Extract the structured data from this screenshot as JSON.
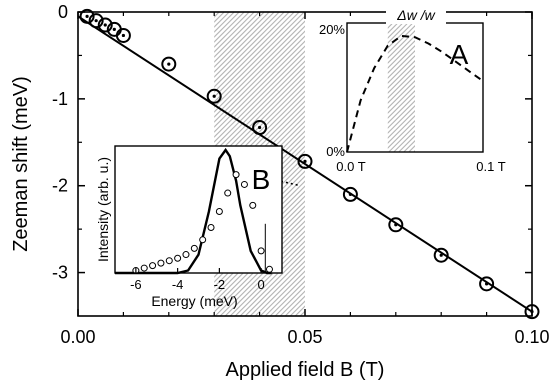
{
  "chart_data": [
    {
      "id": "main",
      "type": "scatter",
      "xlabel": "Applied field B (T)",
      "ylabel": "Zeeman shift (meV)",
      "xlim": [
        0,
        0.1
      ],
      "ylim": [
        -3.5,
        0
      ],
      "x_ticks": [
        0.0,
        0.05,
        0.1
      ],
      "x_tick_labels": [
        "0.00",
        "0.05",
        "0.10"
      ],
      "y_ticks": [
        0,
        -1,
        -2,
        -3
      ],
      "y_tick_labels": [
        "0",
        "-1",
        "-2",
        "-3"
      ],
      "shaded_band": [
        0.03,
        0.05
      ],
      "series": [
        {
          "kind": "points",
          "marker": "circle-dot",
          "x": [
            0.002,
            0.004,
            0.006,
            0.008,
            0.01,
            0.02,
            0.03,
            0.04,
            0.05,
            0.06,
            0.07,
            0.08,
            0.09,
            0.1
          ],
          "y": [
            -0.05,
            -0.1,
            -0.15,
            -0.2,
            -0.27,
            -0.6,
            -0.97,
            -1.33,
            -1.72,
            -2.1,
            -2.45,
            -2.8,
            -3.13,
            -3.45
          ]
        },
        {
          "kind": "line",
          "x": [
            0,
            0.1
          ],
          "y": [
            -0.05,
            -3.45
          ]
        },
        {
          "kind": "dotted-line",
          "x": [
            0.045,
            0.05
          ],
          "y": [
            -1.75,
            -1.95
          ]
        }
      ]
    },
    {
      "id": "inset-A",
      "type": "line",
      "label": "A",
      "title": "Δw /w",
      "xlim": [
        0,
        0.1
      ],
      "ylim": [
        0,
        0.2
      ],
      "x_tick_labels": [
        "0.0 T",
        "0.1 T"
      ],
      "y_tick_labels": [
        "0%",
        "20%"
      ],
      "shaded_band": [
        0.03,
        0.05
      ],
      "series": [
        {
          "kind": "dashed-line",
          "x": [
            0,
            0.01,
            0.02,
            0.03,
            0.04,
            0.05,
            0.06,
            0.07,
            0.08,
            0.09,
            0.1
          ],
          "y": [
            0.0,
            0.08,
            0.13,
            0.165,
            0.18,
            0.178,
            0.168,
            0.155,
            0.14,
            0.125,
            0.11
          ]
        }
      ]
    },
    {
      "id": "inset-B",
      "type": "line",
      "label": "B",
      "xlabel": "Energy (meV)",
      "ylabel": "Intensity  (arb. u.)",
      "xlim": [
        -7,
        1
      ],
      "x_ticks": [
        -6,
        -4,
        -2,
        0
      ],
      "x_tick_labels": [
        "-6",
        "-4",
        "-2",
        "0"
      ],
      "series": [
        {
          "kind": "solid-line",
          "x": [
            -7,
            -4,
            -3.5,
            -3,
            -2.5,
            -2,
            -1.7,
            -1.5,
            -1.2,
            -1,
            -0.5,
            0,
            0.3,
            0.5
          ],
          "y": [
            0,
            0,
            0.02,
            0.15,
            0.5,
            0.93,
            1.0,
            0.95,
            0.75,
            0.55,
            0.18,
            0.02,
            0,
            0
          ]
        },
        {
          "kind": "open-circles",
          "x": [
            -6,
            -5.6,
            -5.2,
            -4.8,
            -4.4,
            -4.0,
            -3.6,
            -3.2,
            -2.8,
            -2.4,
            -2.0,
            -1.6,
            -1.2,
            -0.8,
            -0.4,
            0.0,
            0.4
          ],
          "y": [
            0.02,
            0.04,
            0.06,
            0.08,
            0.1,
            0.12,
            0.15,
            0.2,
            0.27,
            0.37,
            0.5,
            0.65,
            0.8,
            0.72,
            0.55,
            0.18,
            0.03
          ]
        },
        {
          "kind": "vertical-line",
          "x": [
            0.2,
            0.2
          ],
          "y": [
            0.0,
            0.4
          ]
        }
      ]
    }
  ]
}
